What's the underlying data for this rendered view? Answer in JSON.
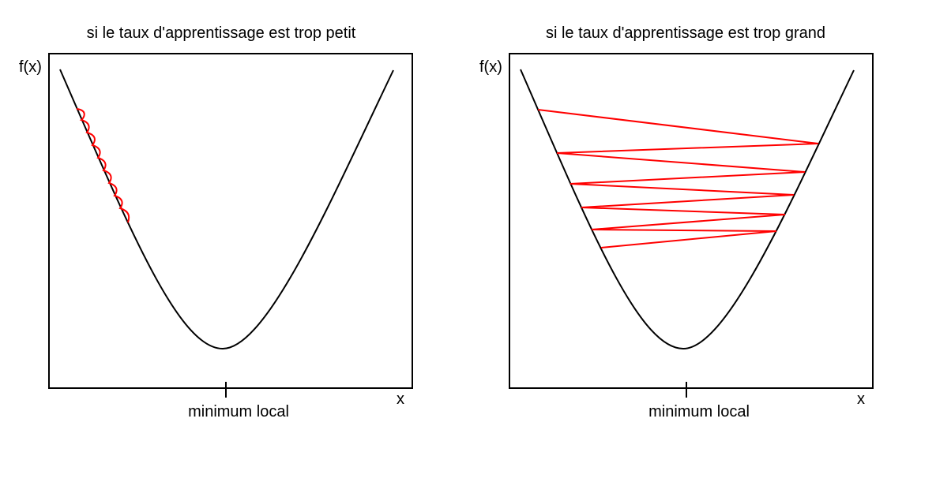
{
  "colors": {
    "curve": "#000000",
    "steps": "#ff0000",
    "frame": "#000000",
    "background": "#ffffff"
  },
  "panels": [
    {
      "title": "si le taux d'apprentissage est trop petit",
      "ylabel": "f(x)",
      "xlabel": "x",
      "marker_label": "minimum local"
    },
    {
      "title": "si le taux d'apprentissage est trop grand",
      "ylabel": "f(x)",
      "xlabel": "x",
      "marker_label": "minimum local"
    }
  ]
}
